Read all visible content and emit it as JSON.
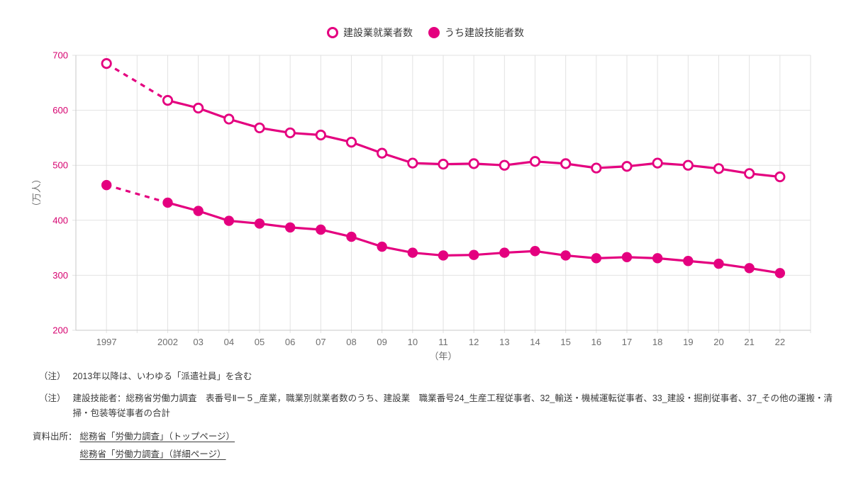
{
  "legend": {
    "items": [
      {
        "label": "建設業就業者数",
        "marker": "open-circle"
      },
      {
        "label": "うち建設技能者数",
        "marker": "filled-circle"
      }
    ]
  },
  "chart_data": {
    "type": "line",
    "title": "",
    "ylabel": "（万人）",
    "xlabel": "（年）",
    "ylim": [
      200,
      700
    ],
    "y_ticks": [
      200,
      300,
      400,
      500,
      600,
      700
    ],
    "grid": true,
    "legend_position": "top-center",
    "axis_break": "dashed line segment between 1997 and 2002 (years 1998-2001 omitted)",
    "categories": [
      "1997",
      "2002",
      "03",
      "04",
      "05",
      "06",
      "07",
      "08",
      "09",
      "10",
      "11",
      "12",
      "13",
      "14",
      "15",
      "16",
      "17",
      "18",
      "19",
      "20",
      "21",
      "22"
    ],
    "series": [
      {
        "name": "建設業就業者数",
        "marker": "open",
        "values": [
          685,
          618,
          604,
          584,
          568,
          559,
          555,
          542,
          522,
          504,
          502,
          503,
          500,
          507,
          503,
          495,
          498,
          504,
          500,
          494,
          485,
          479
        ]
      },
      {
        "name": "うち建設技能者数",
        "marker": "filled",
        "values": [
          464,
          432,
          417,
          399,
          394,
          387,
          383,
          370,
          352,
          341,
          336,
          337,
          341,
          344,
          336,
          331,
          333,
          331,
          326,
          321,
          313,
          304
        ]
      }
    ],
    "colors": {
      "line": "#e4007f",
      "y_tick_label": "#d6006f",
      "x_tick_label": "#6e6e6e",
      "axis_title": "#6e6e6e",
      "grid": "#e2e2e2",
      "axis": "#c9c9c9"
    }
  },
  "notes": [
    {
      "label": "（注）",
      "text": "2013年以降は、いわゆる「派遣社員」を含む"
    },
    {
      "label": "（注）",
      "text": "建設技能者：総務省労働力調査　表番号Ⅱー５_産業，職業別就業者数のうち、建設業　職業番号24_生産工程従事者、32_輸送・機械運転従事者、33_建設・掘削従事者、37_その他の運搬・清掃・包装等従事者の合計"
    }
  ],
  "source": {
    "label": "資料出所：",
    "links": [
      "総務省「労働力調査」（トップページ）",
      "総務省「労働力調査」（詳細ページ）"
    ]
  }
}
